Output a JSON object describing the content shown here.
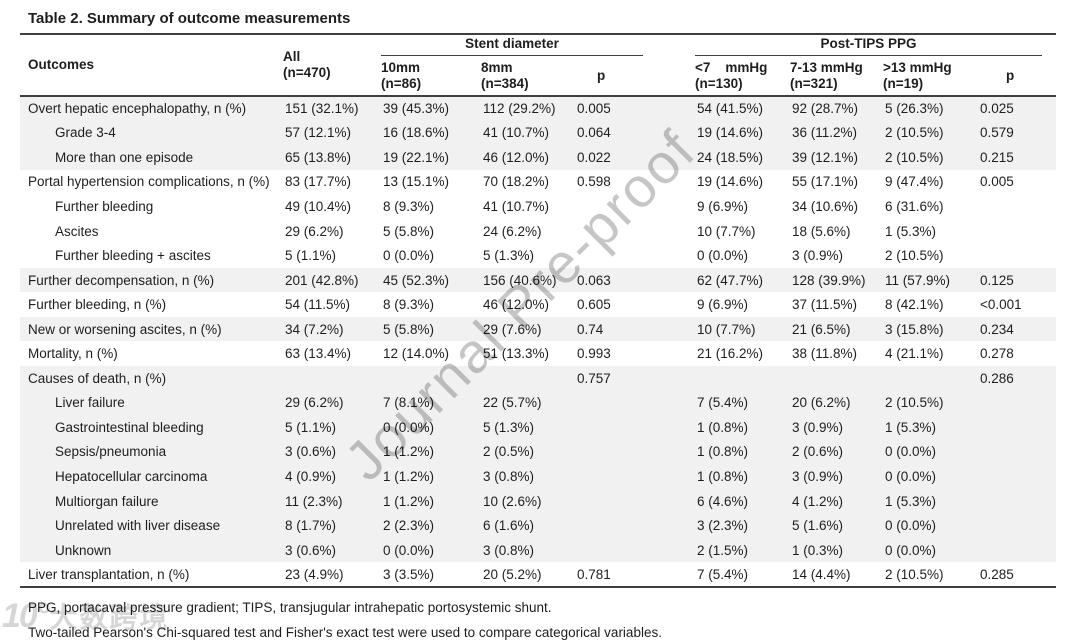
{
  "page": {
    "title": "Table 2. Summary of outcome measurements"
  },
  "colors": {
    "shaded_row": "#f1f1f1",
    "rule": "#3f3f3f",
    "watermark": "#c6c6c6"
  },
  "watermarks": {
    "diagonal_text": "Journal Pre-proof",
    "corner_prefix": "10°",
    "corner_text": "大数跨境"
  },
  "table": {
    "group_headers": [
      {
        "label": "Stent diameter"
      },
      {
        "label": "Post-TIPS PPG"
      }
    ],
    "columns": [
      {
        "lines": [
          "Outcomes"
        ]
      },
      {
        "lines": [
          "All",
          "(n=470)"
        ]
      },
      {
        "lines": [
          "10mm",
          "(n=86)"
        ]
      },
      {
        "lines": [
          "8mm",
          "(n=384)"
        ]
      },
      {
        "lines": [
          "p"
        ]
      },
      {
        "lines": [
          "<7    mmHg",
          "(n=130)"
        ]
      },
      {
        "lines": [
          "7-13 mmHg",
          "(n=321)"
        ]
      },
      {
        "lines": [
          ">13 mmHg",
          "(n=19)"
        ]
      },
      {
        "lines": [
          "p"
        ]
      }
    ],
    "rows": [
      {
        "label": "Overt hepatic encephalopathy, n (%)",
        "indent": false,
        "shaded": true,
        "cells": [
          "151 (32.1%)",
          "39 (45.3%)",
          "112 (29.2%)",
          "0.005",
          "54 (41.5%)",
          "92 (28.7%)",
          "5 (26.3%)",
          "0.025"
        ]
      },
      {
        "label": "Grade 3-4",
        "indent": true,
        "shaded": true,
        "cells": [
          "57 (12.1%)",
          "16 (18.6%)",
          "41 (10.7%)",
          "0.064",
          "19 (14.6%)",
          "36 (11.2%)",
          "2 (10.5%)",
          "0.579"
        ]
      },
      {
        "label": "More than one episode",
        "indent": true,
        "shaded": true,
        "cells": [
          "65 (13.8%)",
          "19 (22.1%)",
          "46 (12.0%)",
          "0.022",
          "24 (18.5%)",
          "39 (12.1%)",
          "2 (10.5%)",
          "0.215"
        ]
      },
      {
        "label": "Portal hypertension complications, n (%)",
        "indent": false,
        "shaded": false,
        "cells": [
          "83 (17.7%)",
          "13 (15.1%)",
          "70 (18.2%)",
          "0.598",
          "19 (14.6%)",
          "55 (17.1%)",
          "9 (47.4%)",
          "0.005"
        ]
      },
      {
        "label": "Further bleeding",
        "indent": true,
        "shaded": false,
        "cells": [
          "49 (10.4%)",
          "8 (9.3%)",
          "41 (10.7%)",
          "",
          "9 (6.9%)",
          "34 (10.6%)",
          "6 (31.6%)",
          ""
        ]
      },
      {
        "label": "Ascites",
        "indent": true,
        "shaded": false,
        "cells": [
          "29 (6.2%)",
          "5 (5.8%)",
          "24 (6.2%)",
          "",
          "10 (7.7%)",
          "18 (5.6%)",
          "1 (5.3%)",
          ""
        ]
      },
      {
        "label": "Further bleeding + ascites",
        "indent": true,
        "shaded": false,
        "cells": [
          "5 (1.1%)",
          "0 (0.0%)",
          "5 (1.3%)",
          "",
          "0 (0.0%)",
          "3 (0.9%)",
          "2 (10.5%)",
          ""
        ]
      },
      {
        "label": "Further decompensation, n (%)",
        "indent": false,
        "shaded": true,
        "cells": [
          "201 (42.8%)",
          "45 (52.3%)",
          "156 (40.6%)",
          "0.063",
          "62 (47.7%)",
          "128 (39.9%)",
          "11 (57.9%)",
          "0.125"
        ]
      },
      {
        "label": "Further bleeding, n (%)",
        "indent": false,
        "shaded": false,
        "cells": [
          "54 (11.5%)",
          "8 (9.3%)",
          "46 (12.0%)",
          "0.605",
          "9 (6.9%)",
          "37 (11.5%)",
          "8 (42.1%)",
          "<0.001"
        ]
      },
      {
        "label": "New or worsening ascites, n (%)",
        "indent": false,
        "shaded": true,
        "cells": [
          "34 (7.2%)",
          "5 (5.8%)",
          "29 (7.6%)",
          "0.74",
          "10 (7.7%)",
          "21 (6.5%)",
          "3 (15.8%)",
          "0.234"
        ]
      },
      {
        "label": "Mortality, n (%)",
        "indent": false,
        "shaded": false,
        "cells": [
          "63 (13.4%)",
          "12 (14.0%)",
          "51 (13.3%)",
          "0.993",
          "21 (16.2%)",
          "38 (11.8%)",
          "4 (21.1%)",
          "0.278"
        ]
      },
      {
        "label": "Causes of death, n (%)",
        "indent": false,
        "shaded": true,
        "cells": [
          "",
          "",
          "",
          "0.757",
          "",
          "",
          "",
          "0.286"
        ]
      },
      {
        "label": "Liver failure",
        "indent": true,
        "shaded": true,
        "cells": [
          "29 (6.2%)",
          "7 (8.1%)",
          "22 (5.7%)",
          "",
          "7 (5.4%)",
          "20 (6.2%)",
          "2 (10.5%)",
          ""
        ]
      },
      {
        "label": "Gastrointestinal bleeding",
        "indent": true,
        "shaded": true,
        "cells": [
          "5 (1.1%)",
          "0 (0.0%)",
          "5 (1.3%)",
          "",
          "1 (0.8%)",
          "3 (0.9%)",
          "1 (5.3%)",
          ""
        ]
      },
      {
        "label": "Sepsis/pneumonia",
        "indent": true,
        "shaded": true,
        "cells": [
          "3 (0.6%)",
          "1 (1.2%)",
          "2 (0.5%)",
          "",
          "1 (0.8%)",
          "2 (0.6%)",
          "0 (0.0%)",
          ""
        ]
      },
      {
        "label": "Hepatocellular carcinoma",
        "indent": true,
        "shaded": true,
        "cells": [
          "4 (0.9%)",
          "1 (1.2%)",
          "3 (0.8%)",
          "",
          "1 (0.8%)",
          "3 (0.9%)",
          "0 (0.0%)",
          ""
        ]
      },
      {
        "label": "Multiorgan failure",
        "indent": true,
        "shaded": true,
        "cells": [
          "11 (2.3%)",
          "1 (1.2%)",
          "10 (2.6%)",
          "",
          "6 (4.6%)",
          "4 (1.2%)",
          "1 (5.3%)",
          ""
        ]
      },
      {
        "label": "Unrelated with liver disease",
        "indent": true,
        "shaded": true,
        "cells": [
          "8 (1.7%)",
          "2 (2.3%)",
          "6 (1.6%)",
          "",
          "3 (2.3%)",
          "5 (1.6%)",
          "0 (0.0%)",
          ""
        ]
      },
      {
        "label": "Unknown",
        "indent": true,
        "shaded": true,
        "cells": [
          "3 (0.6%)",
          "0 (0.0%)",
          "3 (0.8%)",
          "",
          "2 (1.5%)",
          "1 (0.3%)",
          "0 (0.0%)",
          ""
        ]
      },
      {
        "label": "Liver transplantation, n (%)",
        "indent": false,
        "shaded": false,
        "cells": [
          "23 (4.9%)",
          "3 (3.5%)",
          "20 (5.2%)",
          "0.781",
          "7 (5.4%)",
          "14 (4.4%)",
          "2 (10.5%)",
          "0.285"
        ]
      }
    ]
  },
  "footnotes": [
    "PPG, portacaval pressure gradient; TIPS, transjugular intrahepatic portosystemic shunt.",
    "Two-tailed Pearson's Chi-squared test and Fisher's exact test were used to compare categorical variables."
  ]
}
